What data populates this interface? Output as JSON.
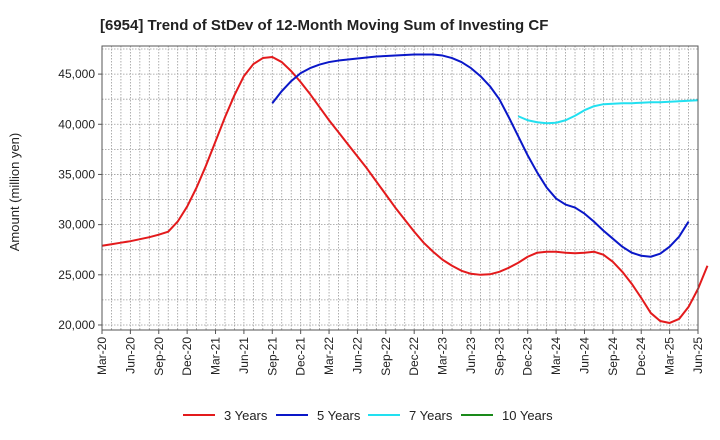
{
  "chart_data": {
    "type": "line",
    "title": "[6954]  Trend of StDev of 12-Month Moving Sum of Investing CF",
    "xlabel": "",
    "ylabel": "Amount (million yen)",
    "ylim": [
      19500,
      47800
    ],
    "yticks": [
      20000,
      25000,
      30000,
      35000,
      40000,
      45000
    ],
    "ytick_labels": [
      "20,000",
      "25,000",
      "30,000",
      "35,000",
      "40,000",
      "45,000"
    ],
    "xtick_labels": [
      "Mar-20",
      "Jun-20",
      "Sep-20",
      "Dec-20",
      "Mar-21",
      "Jun-21",
      "Sep-21",
      "Dec-21",
      "Mar-22",
      "Jun-22",
      "Sep-22",
      "Dec-22",
      "Mar-23",
      "Jun-23",
      "Sep-23",
      "Dec-23",
      "Mar-24",
      "Jun-24",
      "Sep-24",
      "Dec-24",
      "Mar-25",
      "Jun-25"
    ],
    "grid": true,
    "legend_position": "bottom",
    "x_start": "Mar-20",
    "x_step": "month",
    "series": [
      {
        "name": "3 Years",
        "color": "#e31a1c",
        "start_index": 0,
        "values": [
          27900,
          28050,
          28200,
          28350,
          28550,
          28750,
          29000,
          29300,
          30300,
          31800,
          33700,
          35900,
          38300,
          40700,
          42900,
          44800,
          46000,
          46600,
          46700,
          46200,
          45300,
          44200,
          43000,
          41700,
          40400,
          39200,
          38000,
          36800,
          35600,
          34300,
          33000,
          31700,
          30500,
          29300,
          28200,
          27300,
          26500,
          25900,
          25400,
          25100,
          25000,
          25050,
          25300,
          25700,
          26200,
          26800,
          27200,
          27300,
          27300,
          27200,
          27150,
          27200,
          27300,
          27000,
          26300,
          25300,
          24100,
          22700,
          21200,
          20400,
          20200,
          20600,
          21800,
          23600,
          25900
        ]
      },
      {
        "name": "5 Years",
        "color": "#0a17c8",
        "start_index": 18,
        "values": [
          42100,
          43300,
          44300,
          45100,
          45600,
          45950,
          46200,
          46350,
          46450,
          46550,
          46650,
          46750,
          46800,
          46850,
          46900,
          46950,
          46950,
          46950,
          46850,
          46600,
          46200,
          45600,
          44800,
          43800,
          42500,
          40700,
          38800,
          36900,
          35200,
          33700,
          32600,
          32000,
          31700,
          31100,
          30300,
          29400,
          28600,
          27800,
          27200,
          26900,
          26800,
          27100,
          27800,
          28800,
          30300
        ]
      },
      {
        "name": "7 Years",
        "color": "#22e0f0",
        "start_index": 44,
        "values": [
          40800,
          40400,
          40200,
          40100,
          40150,
          40400,
          40850,
          41400,
          41800,
          42000,
          42050,
          42100,
          42100,
          42150,
          42200,
          42200,
          42250,
          42300,
          42350,
          42400
        ]
      },
      {
        "name": "10 Years",
        "color": "#1a8a1a",
        "start_index": 0,
        "values": []
      }
    ]
  }
}
